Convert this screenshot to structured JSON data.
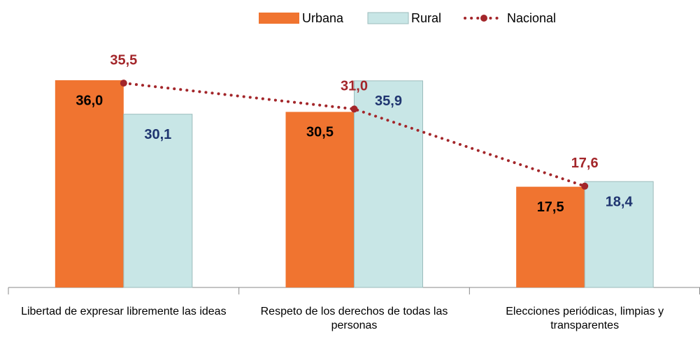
{
  "chart_data": {
    "type": "bar",
    "categories": [
      "Libertad de expresar libremente las ideas",
      "Respeto de los derechos de todas las personas",
      "Elecciones periódicas, limpias y transparentes"
    ],
    "series": [
      {
        "name": "Urbana",
        "type": "bar",
        "color": "#f07430",
        "label_color": "#000000",
        "values": [
          36.0,
          30.5,
          17.5
        ],
        "value_labels": [
          "36,0",
          "30,5",
          "17,5"
        ]
      },
      {
        "name": "Rural",
        "type": "bar",
        "color": "#c8e6e6",
        "label_color": "#1f3570",
        "values": [
          30.1,
          35.9,
          18.4
        ],
        "value_labels": [
          "30,1",
          "35,9",
          "18,4"
        ]
      },
      {
        "name": "Nacional",
        "type": "line",
        "color": "#a3262a",
        "label_color": "#a3262a",
        "values": [
          35.5,
          31.0,
          17.6
        ],
        "value_labels": [
          "35,5",
          "31,0",
          "17,6"
        ]
      }
    ],
    "ylim": [
      0,
      40
    ],
    "legend": "top"
  }
}
